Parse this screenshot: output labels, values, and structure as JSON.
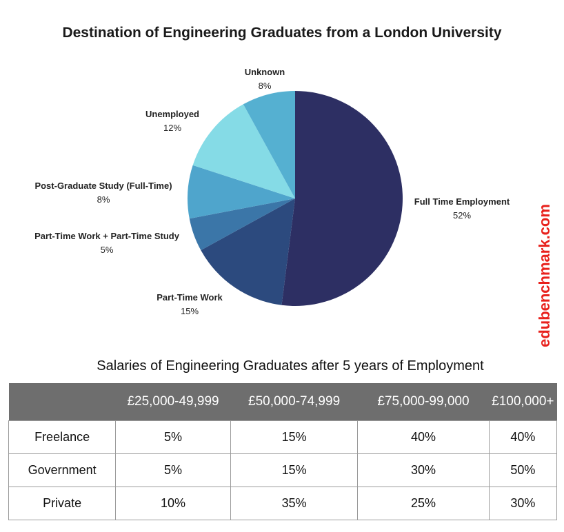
{
  "chart_data": [
    {
      "type": "pie",
      "title": "Destination of Engineering Graduates from a London University",
      "slices": [
        {
          "label": "Full Time Employment",
          "value": 52,
          "value_label": "52%",
          "color": "#2d2f63"
        },
        {
          "label": "Part-Time Work",
          "value": 15,
          "value_label": "15%",
          "color": "#2c4a7e"
        },
        {
          "label": "Part-Time Work + Part-Time Study",
          "value": 5,
          "value_label": "5%",
          "color": "#3b76a8"
        },
        {
          "label": "Post-Graduate Study (Full-Time)",
          "value": 8,
          "value_label": "8%",
          "color": "#4fa5cc"
        },
        {
          "label": "Unemployed",
          "value": 12,
          "value_label": "12%",
          "color": "#85dbe6"
        },
        {
          "label": "Unknown",
          "value": 8,
          "value_label": "8%",
          "color": "#55b0d1"
        }
      ]
    },
    {
      "type": "table",
      "title": "Salaries of Engineering Graduates after 5 years of Employment",
      "columns": [
        "",
        "£25,000-49,999",
        "£50,000-74,999",
        "£75,000-99,000",
        "£100,000+"
      ],
      "rows": [
        {
          "label": "Freelance",
          "values": [
            "5%",
            "15%",
            "40%",
            "40%"
          ]
        },
        {
          "label": "Government",
          "values": [
            "5%",
            "15%",
            "30%",
            "50%"
          ]
        },
        {
          "label": "Private",
          "values": [
            "10%",
            "35%",
            "25%",
            "30%"
          ]
        }
      ]
    }
  ],
  "watermark": "edubenchmark.com"
}
